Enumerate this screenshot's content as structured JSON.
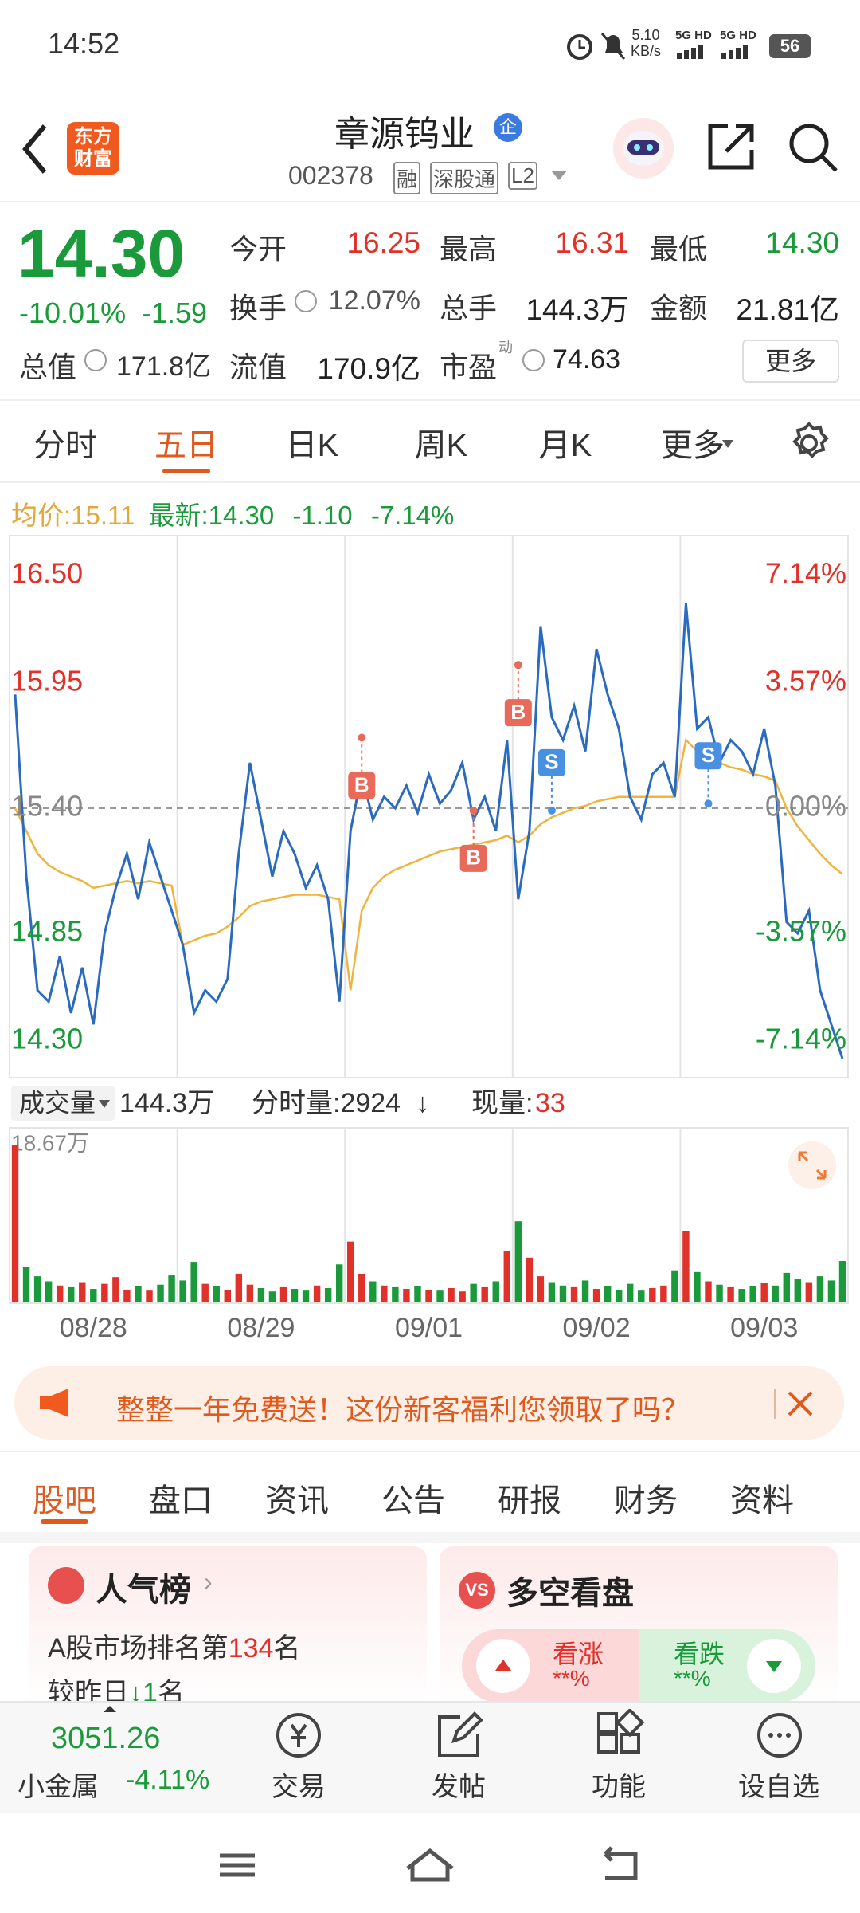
{
  "status": {
    "time": "14:52",
    "net_speed": "5.10",
    "net_unit": "KB/s",
    "signal1": "5G HD",
    "signal2": "5G HD",
    "battery": "56"
  },
  "header": {
    "logo": [
      "东方",
      "财富"
    ],
    "name": "章源钨业",
    "badge": "企",
    "code": "002378",
    "tags": [
      "融",
      "深股通",
      "L2"
    ]
  },
  "quote": {
    "price": "14.30",
    "change_pct": "-10.01%",
    "change": "-1.59",
    "fields": [
      {
        "label": "今开",
        "value": "16.25"
      },
      {
        "label": "最高",
        "value": "16.31"
      },
      {
        "label": "最低",
        "value": "14.30"
      },
      {
        "label": "换手",
        "value": "12.07%"
      },
      {
        "label": "总手",
        "value": "144.3万"
      },
      {
        "label": "金额",
        "value": "21.81亿"
      },
      {
        "label": "总值",
        "value": "171.8亿"
      },
      {
        "label": "流值",
        "value": "170.9亿"
      },
      {
        "label": "市盈",
        "value": "74.63",
        "sup": "动"
      }
    ],
    "more": "更多"
  },
  "tabs": {
    "items": [
      "分时",
      "五日",
      "日K",
      "周K",
      "月K",
      "更多"
    ],
    "active": 1
  },
  "info": {
    "avg_label": "均价:",
    "avg": "15.11",
    "last_label": "最新:",
    "last": "14.30",
    "change": "-1.10",
    "change_pct": "-7.14%"
  },
  "chart_data": [
    {
      "type": "line",
      "series": [
        {
          "color": "#2a6bbf",
          "values": [
            15.9,
            15.1,
            14.6,
            14.55,
            14.75,
            14.5,
            14.7,
            14.45,
            14.85,
            15.05,
            15.2,
            15.0,
            15.25,
            15.1,
            14.95,
            14.8,
            14.5,
            14.6,
            14.55,
            14.65,
            15.2,
            15.6,
            15.35,
            15.1,
            15.3,
            15.2,
            15.05,
            15.15,
            15.0,
            14.55,
            15.3,
            15.55,
            15.35,
            15.45,
            15.4,
            15.5,
            15.38,
            15.55,
            15.42,
            15.48,
            15.6,
            15.35,
            15.45,
            15.3,
            15.7,
            15.0,
            15.3,
            16.2,
            15.8,
            15.7,
            15.85,
            15.65,
            16.1,
            15.9,
            15.75,
            15.45,
            15.35,
            15.55,
            15.6,
            15.45,
            16.3,
            15.75,
            15.8,
            15.6,
            15.7,
            15.65,
            15.55,
            15.75,
            15.5,
            14.9,
            14.85,
            14.95,
            14.6,
            14.45,
            14.3
          ]
        },
        {
          "color": "#f0b43c",
          "values": [
            15.4,
            15.3,
            15.2,
            15.15,
            15.12,
            15.1,
            15.08,
            15.05,
            15.06,
            15.07,
            15.08,
            15.07,
            15.08,
            15.07,
            15.06,
            14.8,
            14.82,
            14.84,
            14.85,
            14.88,
            14.92,
            14.97,
            14.99,
            15.0,
            15.01,
            15.02,
            15.02,
            15.02,
            15.01,
            15.0,
            14.6,
            14.95,
            15.05,
            15.1,
            15.13,
            15.15,
            15.17,
            15.19,
            15.21,
            15.22,
            15.23,
            15.24,
            15.25,
            15.26,
            15.28,
            15.25,
            15.28,
            15.33,
            15.36,
            15.38,
            15.4,
            15.41,
            15.43,
            15.44,
            15.45,
            15.45,
            15.45,
            15.45,
            15.45,
            15.45,
            15.7,
            15.65,
            15.62,
            15.6,
            15.58,
            15.57,
            15.55,
            15.54,
            15.52,
            15.4,
            15.32,
            15.26,
            15.2,
            15.15,
            15.11
          ]
        }
      ],
      "ylim": [
        14.3,
        16.5
      ],
      "yticks": [
        {
          "value": 16.5,
          "label": "16.50"
        },
        {
          "value": 15.95,
          "label": "15.95"
        },
        {
          "value": 15.4,
          "label": "15.40"
        },
        {
          "value": 14.85,
          "label": "14.85"
        },
        {
          "value": 14.3,
          "label": "14.30"
        }
      ],
      "y2lim": [
        -7.14,
        7.14
      ],
      "y2ticks": [
        {
          "value": 7.14,
          "label": "7.14%"
        },
        {
          "value": 3.57,
          "label": "3.57%"
        },
        {
          "value": 0,
          "label": "0.00%"
        },
        {
          "value": -3.57,
          "label": "-3.57%"
        },
        {
          "value": -7.14,
          "label": "-7.14%"
        }
      ],
      "days": [
        "08/28",
        "08/29",
        "09/01",
        "09/02",
        "09/03"
      ],
      "markers": [
        {
          "label": "B",
          "x": 31,
          "value": 15.71
        },
        {
          "label": "B",
          "x": 41,
          "value": 15.39
        },
        {
          "label": "B",
          "x": 45,
          "value": 16.03
        },
        {
          "label": "S",
          "x": 48,
          "value": 15.39
        },
        {
          "label": "S",
          "x": 62,
          "value": 15.42
        }
      ]
    },
    {
      "type": "bar",
      "ylim": [
        0,
        18.67
      ],
      "yticks": [
        {
          "value": 18.67,
          "label": "18.67万"
        }
      ],
      "colors": [
        "#e0312a",
        "#1a9a3a"
      ],
      "values": [
        18.67,
        4.2,
        3.1,
        2.5,
        2.0,
        1.8,
        2.4,
        1.6,
        2.2,
        3.0,
        1.5,
        1.9,
        1.4,
        2.1,
        3.2,
        2.6,
        4.8,
        2.2,
        1.9,
        1.5,
        3.4,
        2.1,
        1.7,
        1.3,
        1.8,
        1.6,
        1.4,
        2.0,
        1.7,
        4.5,
        7.2,
        3.4,
        2.5,
        2.0,
        1.8,
        1.6,
        1.9,
        1.5,
        1.4,
        1.7,
        1.3,
        2.2,
        1.8,
        2.5,
        6.1,
        9.6,
        5.3,
        3.1,
        2.4,
        2.0,
        1.8,
        2.6,
        1.6,
        1.9,
        1.5,
        2.2,
        1.4,
        1.7,
        2.0,
        3.8,
        8.4,
        3.6,
        2.5,
        2.1,
        1.8,
        1.6,
        1.9,
        2.3,
        2.0,
        3.5,
        2.8,
        2.4,
        3.1,
        2.6,
        4.9
      ]
    }
  ],
  "volume_info": {
    "label": "成交量",
    "total": "144.3万",
    "tick_label": "分时量:2924",
    "tick_arrow": "↓",
    "now_label": "现量:",
    "now": "33"
  },
  "banner": {
    "text": "整整一年免费送！这份新客福利您领取了吗？"
  },
  "sections": {
    "items": [
      "股吧",
      "盘口",
      "资讯",
      "公告",
      "研报",
      "财务",
      "资料"
    ],
    "active": 0
  },
  "cards": {
    "rank": {
      "title": "人气榜",
      "line1_pre": "A股市场排名第",
      "rank": "134",
      "line1_post": "名",
      "line2_pre": "较昨日",
      "change": "1",
      "line2_post": "名"
    },
    "vote": {
      "title": "多空看盘",
      "badge": "VS",
      "up": "看涨",
      "up_pct": "**%",
      "down": "看跌",
      "down_pct": "**%"
    }
  },
  "bottom": {
    "index_value": "3051.26",
    "index_name": "小金属",
    "index_change": "-4.11%",
    "items": [
      "交易",
      "发帖",
      "功能",
      "设自选"
    ]
  }
}
